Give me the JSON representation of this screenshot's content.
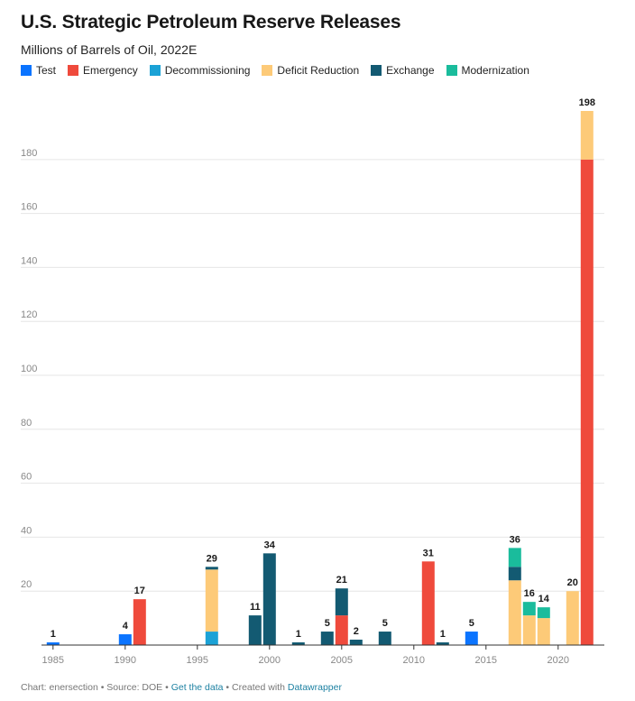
{
  "header": {
    "title": "U.S. Strategic Petroleum Reserve Releases",
    "subtitle": "Millions of Barrels of Oil, 2022E"
  },
  "footer": {
    "prefix": "Chart: enersection • Source: DOE • ",
    "link_label": "Get the data",
    "middle": " • Created with ",
    "credit_label": "Datawrapper"
  },
  "chart_data": {
    "type": "bar",
    "stacked": true,
    "title": "U.S. Strategic Petroleum Reserve Releases",
    "subtitle": "Millions of Barrels of Oil, 2022E",
    "xlabel": "",
    "ylabel": "",
    "xlim": [
      1984.2,
      2023.2
    ],
    "ylim": [
      0,
      198
    ],
    "yticks": [
      20,
      40,
      60,
      80,
      100,
      120,
      140,
      160,
      180
    ],
    "xticks": [
      1985,
      1990,
      1995,
      2000,
      2005,
      2010,
      2015,
      2020
    ],
    "grid": true,
    "legend_position": "top-left",
    "categories": [
      "Test",
      "Emergency",
      "Decommissioning",
      "Deficit Reduction",
      "Exchange",
      "Modernization"
    ],
    "colors": {
      "Test": "#0b74ff",
      "Emergency": "#ef4a3c",
      "Decommissioning": "#1ba2d6",
      "Deficit Reduction": "#fdca78",
      "Exchange": "#135a72",
      "Modernization": "#1abc9c"
    },
    "bars": [
      {
        "year": 1985,
        "total": 1,
        "segments": [
          {
            "category": "Test",
            "value": 1
          }
        ]
      },
      {
        "year": 1990,
        "total": 4,
        "segments": [
          {
            "category": "Test",
            "value": 4
          }
        ]
      },
      {
        "year": 1991,
        "total": 17,
        "segments": [
          {
            "category": "Emergency",
            "value": 17
          }
        ]
      },
      {
        "year": 1996,
        "total": 29,
        "segments": [
          {
            "category": "Decommissioning",
            "value": 5
          },
          {
            "category": "Deficit Reduction",
            "value": 23
          },
          {
            "category": "Exchange",
            "value": 1
          }
        ]
      },
      {
        "year": 1999,
        "total": 11,
        "segments": [
          {
            "category": "Exchange",
            "value": 11
          }
        ]
      },
      {
        "year": 2000,
        "total": 34,
        "segments": [
          {
            "category": "Exchange",
            "value": 34
          }
        ]
      },
      {
        "year": 2002,
        "total": 1,
        "segments": [
          {
            "category": "Exchange",
            "value": 1
          }
        ]
      },
      {
        "year": 2004,
        "total": 5,
        "segments": [
          {
            "category": "Exchange",
            "value": 5
          }
        ]
      },
      {
        "year": 2005,
        "total": 21,
        "segments": [
          {
            "category": "Emergency",
            "value": 11
          },
          {
            "category": "Exchange",
            "value": 10
          }
        ]
      },
      {
        "year": 2006,
        "total": 2,
        "segments": [
          {
            "category": "Exchange",
            "value": 2
          }
        ]
      },
      {
        "year": 2008,
        "total": 5,
        "segments": [
          {
            "category": "Exchange",
            "value": 5
          }
        ]
      },
      {
        "year": 2011,
        "total": 31,
        "segments": [
          {
            "category": "Emergency",
            "value": 31
          }
        ]
      },
      {
        "year": 2012,
        "total": 1,
        "segments": [
          {
            "category": "Exchange",
            "value": 1
          }
        ]
      },
      {
        "year": 2014,
        "total": 5,
        "segments": [
          {
            "category": "Test",
            "value": 5
          }
        ]
      },
      {
        "year": 2017,
        "total": 36,
        "segments": [
          {
            "category": "Deficit Reduction",
            "value": 24
          },
          {
            "category": "Exchange",
            "value": 5
          },
          {
            "category": "Modernization",
            "value": 7
          }
        ]
      },
      {
        "year": 2018,
        "total": 16,
        "segments": [
          {
            "category": "Deficit Reduction",
            "value": 11
          },
          {
            "category": "Modernization",
            "value": 5
          }
        ]
      },
      {
        "year": 2019,
        "total": 14,
        "segments": [
          {
            "category": "Deficit Reduction",
            "value": 10
          },
          {
            "category": "Modernization",
            "value": 4
          }
        ]
      },
      {
        "year": 2021,
        "total": 20,
        "segments": [
          {
            "category": "Deficit Reduction",
            "value": 20
          }
        ]
      },
      {
        "year": 2022,
        "total": 198,
        "segments": [
          {
            "category": "Emergency",
            "value": 180
          },
          {
            "category": "Deficit Reduction",
            "value": 18
          }
        ]
      }
    ]
  }
}
